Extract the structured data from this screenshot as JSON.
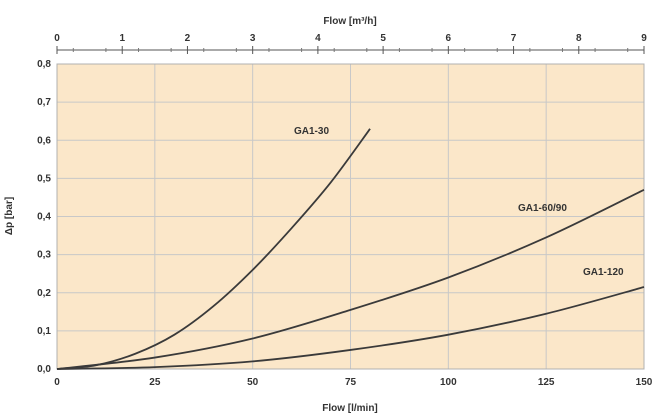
{
  "chart_data": {
    "type": "line",
    "top_axis": {
      "label": "Flow [m³/h]",
      "range": [
        0,
        9
      ],
      "ticks": [
        "0",
        "1",
        "2",
        "3",
        "4",
        "5",
        "6",
        "7",
        "8",
        "9"
      ]
    },
    "bottom_axis": {
      "label": "Flow [l/min]",
      "range": [
        0,
        150
      ],
      "ticks": [
        "0",
        "25",
        "50",
        "75",
        "100",
        "125",
        "150"
      ]
    },
    "y_axis": {
      "label": "Δp [bar]",
      "range": [
        0,
        0.8
      ],
      "ticks": [
        "0,0",
        "0,1",
        "0,2",
        "0,3",
        "0,4",
        "0,5",
        "0,6",
        "0,7",
        "0,8"
      ]
    },
    "grid": true,
    "colors": {
      "plot_background": "#fbe7c9",
      "grid": "#c8c8c8",
      "curve": "#3a3a3a"
    },
    "series": [
      {
        "name": "GA1-30",
        "x": [
          0,
          10,
          20,
          30,
          40,
          50,
          60,
          70,
          80
        ],
        "y": [
          0,
          0.01,
          0.04,
          0.09,
          0.165,
          0.26,
          0.37,
          0.49,
          0.63
        ]
      },
      {
        "name": "GA1-60/90",
        "x": [
          0,
          25,
          50,
          75,
          100,
          125,
          150
        ],
        "y": [
          0,
          0.03,
          0.08,
          0.155,
          0.24,
          0.345,
          0.47
        ]
      },
      {
        "name": "GA1-120",
        "x": [
          0,
          25,
          50,
          75,
          100,
          125,
          150
        ],
        "y": [
          0,
          0.005,
          0.02,
          0.05,
          0.09,
          0.145,
          0.215
        ]
      }
    ]
  }
}
